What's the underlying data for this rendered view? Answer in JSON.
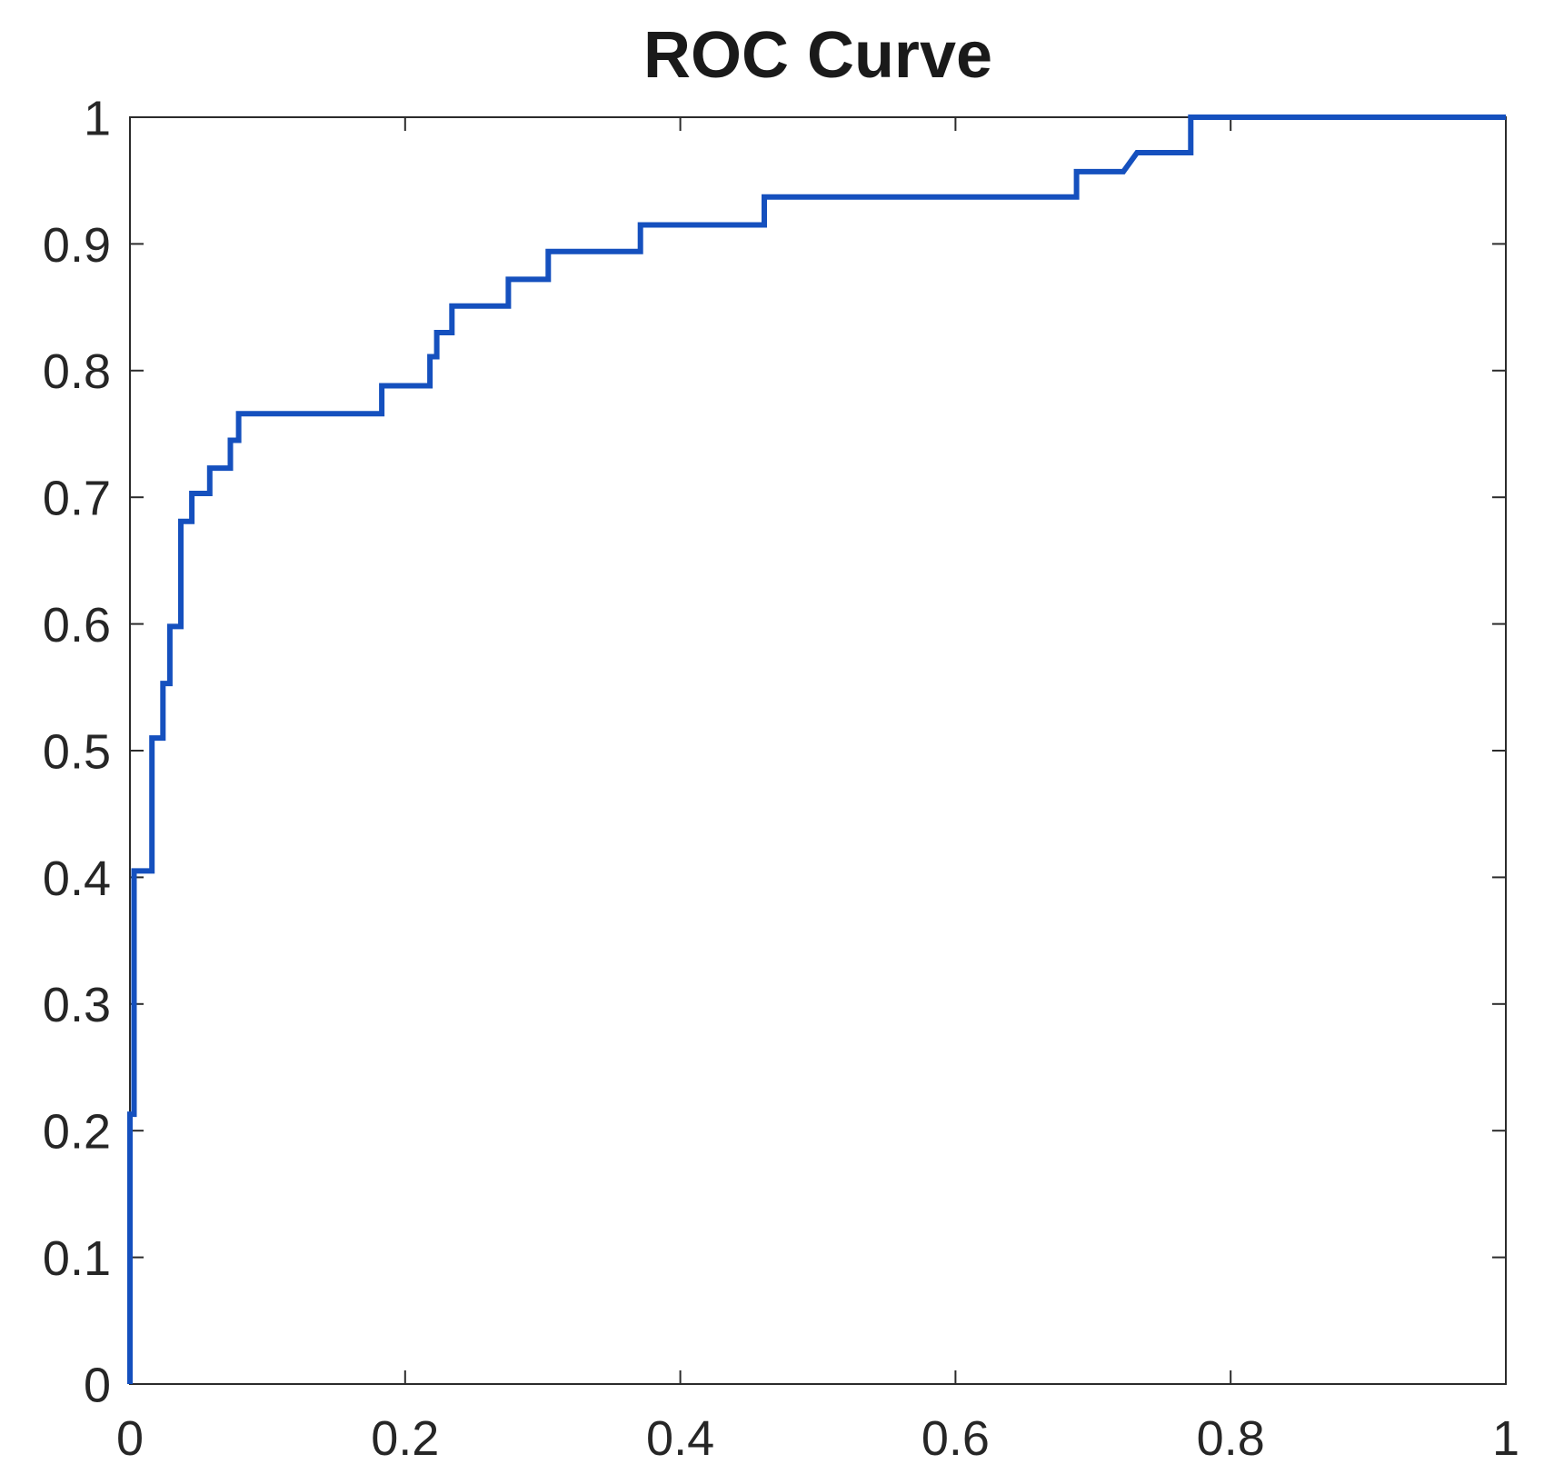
{
  "figure": {
    "title": "ROC Curve"
  },
  "chart_data": {
    "type": "line",
    "title": "ROC Curve",
    "subtitle": "",
    "xlabel": "",
    "ylabel": "",
    "xlim": [
      0,
      1
    ],
    "ylim": [
      0,
      1
    ],
    "grid": false,
    "box": true,
    "legend": null,
    "line_style": "step-staircase",
    "x_ticks": [
      0,
      0.2,
      0.4,
      0.6,
      0.8,
      1
    ],
    "x_tick_labels": [
      "0",
      "0.2",
      "0.4",
      "0.6",
      "0.8",
      "1"
    ],
    "y_ticks": [
      0,
      0.1,
      0.2,
      0.3,
      0.4,
      0.5,
      0.6,
      0.7,
      0.8,
      0.9,
      1
    ],
    "y_tick_labels": [
      "0",
      "0.1",
      "0.2",
      "0.3",
      "0.4",
      "0.5",
      "0.6",
      "0.7",
      "0.8",
      "0.9",
      "1"
    ],
    "series": [
      {
        "name": "ROC curve",
        "color": "#1550be",
        "points": [
          [
            0,
            0
          ],
          [
            0,
            0.213
          ],
          [
            0.003,
            0.213
          ],
          [
            0.003,
            0.405
          ],
          [
            0.016,
            0.405
          ],
          [
            0.016,
            0.51
          ],
          [
            0.024,
            0.51
          ],
          [
            0.024,
            0.553
          ],
          [
            0.029,
            0.553
          ],
          [
            0.029,
            0.598
          ],
          [
            0.037,
            0.598
          ],
          [
            0.037,
            0.681
          ],
          [
            0.045,
            0.681
          ],
          [
            0.045,
            0.703
          ],
          [
            0.058,
            0.703
          ],
          [
            0.058,
            0.723
          ],
          [
            0.073,
            0.723
          ],
          [
            0.073,
            0.745
          ],
          [
            0.079,
            0.745
          ],
          [
            0.079,
            0.766
          ],
          [
            0.183,
            0.766
          ],
          [
            0.183,
            0.788
          ],
          [
            0.218,
            0.788
          ],
          [
            0.218,
            0.811
          ],
          [
            0.223,
            0.811
          ],
          [
            0.223,
            0.83
          ],
          [
            0.234,
            0.83
          ],
          [
            0.234,
            0.851
          ],
          [
            0.275,
            0.851
          ],
          [
            0.275,
            0.872
          ],
          [
            0.304,
            0.872
          ],
          [
            0.304,
            0.894
          ],
          [
            0.371,
            0.894
          ],
          [
            0.371,
            0.915
          ],
          [
            0.461,
            0.915
          ],
          [
            0.461,
            0.937
          ],
          [
            0.688,
            0.937
          ],
          [
            0.688,
            0.957
          ],
          [
            0.722,
            0.957
          ],
          [
            0.732,
            0.972
          ],
          [
            0.771,
            0.972
          ],
          [
            0.771,
            1.0
          ],
          [
            1.0,
            1.0
          ]
        ]
      }
    ],
    "colors": {
      "line": "#1550be",
      "axis": "#2b2b2b",
      "tick_label": "#262626",
      "title": "#1a1a1a",
      "background": "#ffffff"
    }
  }
}
